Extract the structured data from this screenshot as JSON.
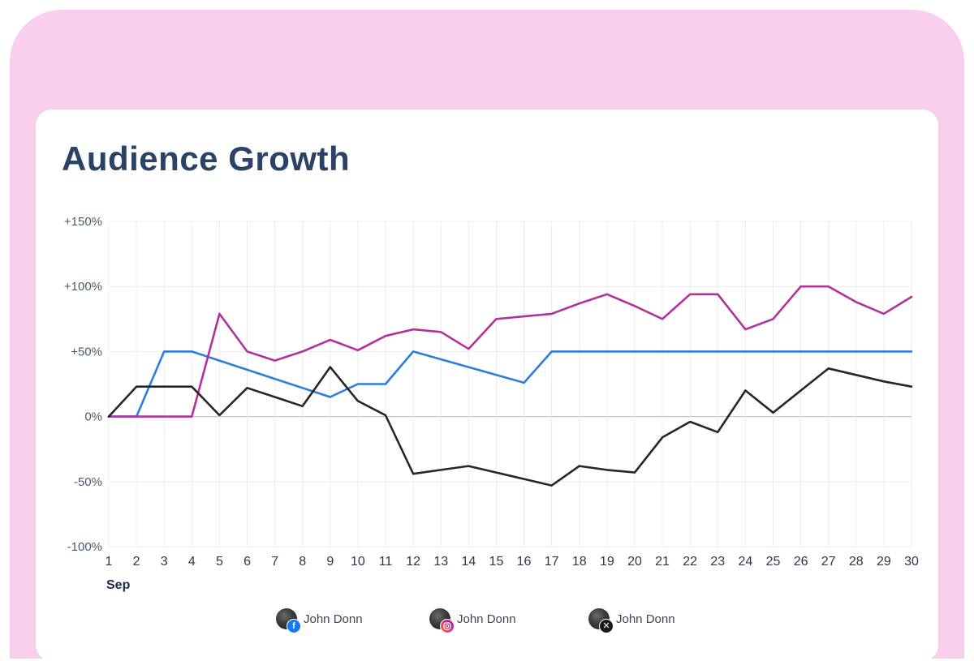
{
  "page": {
    "frame_color": "#f8d0ee"
  },
  "title": "Audience Growth",
  "chart_data": {
    "type": "line",
    "title": "Audience Growth",
    "xlabel": "Sep",
    "ylabel": "",
    "x": [
      1,
      2,
      3,
      4,
      5,
      6,
      7,
      8,
      9,
      10,
      11,
      12,
      13,
      14,
      15,
      16,
      17,
      18,
      19,
      20,
      21,
      22,
      23,
      24,
      25,
      26,
      27,
      28,
      29,
      30
    ],
    "y_ticks": [
      150,
      100,
      50,
      0,
      -50,
      -100
    ],
    "y_tick_labels": [
      "+150%",
      "+100%",
      "+50%",
      "0%",
      "-50%",
      "-100%"
    ],
    "ylim": [
      -100,
      150
    ],
    "grid": true,
    "legend_position": "bottom",
    "series": [
      {
        "name": "John Donn",
        "network": "facebook",
        "color": "#2b7de0",
        "values": [
          0,
          0,
          50,
          50,
          43,
          36,
          29,
          22,
          15,
          25,
          25,
          50,
          44,
          38,
          32,
          26,
          50,
          50,
          50,
          50,
          50,
          50,
          50,
          50,
          50,
          50,
          50,
          50,
          50,
          50
        ]
      },
      {
        "name": "John Donn",
        "network": "instagram",
        "color": "#b5309a",
        "values": [
          0,
          0,
          0,
          0,
          79,
          50,
          43,
          50,
          59,
          51,
          62,
          67,
          65,
          52,
          75,
          77,
          79,
          87,
          94,
          85,
          75,
          94,
          94,
          67,
          75,
          100,
          100,
          88,
          79,
          92
        ]
      },
      {
        "name": "John Donn",
        "network": "x",
        "color": "#262626",
        "values": [
          0,
          23,
          23,
          23,
          1,
          22,
          15,
          8,
          38,
          12,
          1,
          -44,
          -41,
          -38,
          -43,
          -48,
          -53,
          -38,
          -41,
          -43,
          -16,
          -4,
          -12,
          20,
          3,
          20,
          37,
          32,
          27,
          23
        ]
      }
    ]
  }
}
